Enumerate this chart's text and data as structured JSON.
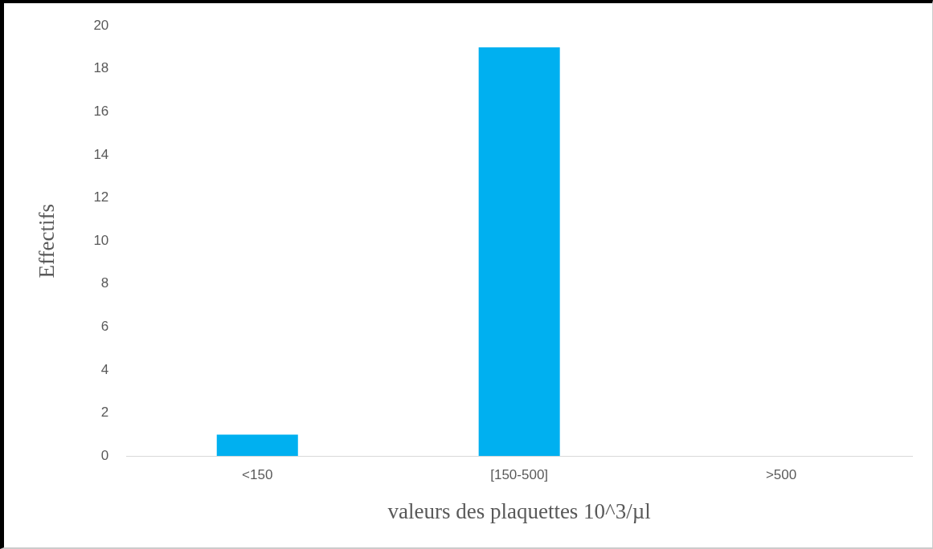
{
  "chart_data": {
    "type": "bar",
    "xlabel": "valeurs des plaquettes 10^3/µl",
    "ylabel": "Effectifs",
    "categories": [
      "<150",
      "[150-500]",
      ">500"
    ],
    "values": [
      1,
      19,
      0
    ],
    "color": "#00b0f0",
    "ylim": [
      0,
      20
    ],
    "yticks": [
      0,
      2,
      4,
      6,
      8,
      10,
      12,
      14,
      16,
      18,
      20
    ],
    "grid": false,
    "legend": false
  }
}
